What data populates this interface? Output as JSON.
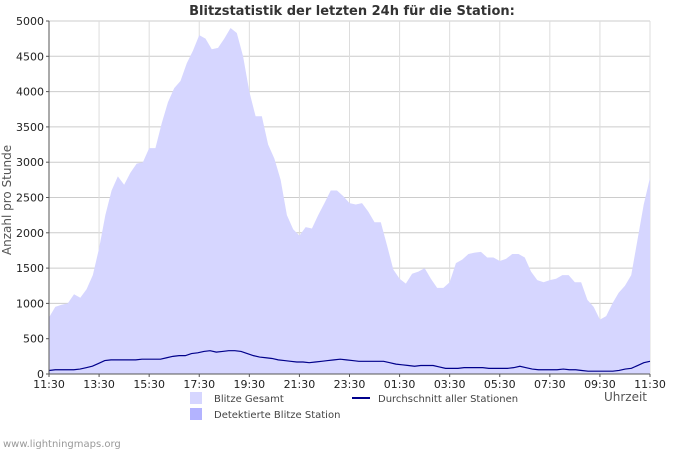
{
  "chart_data": {
    "type": "area",
    "title": "Blitzstatistik der letzten 24h für die Station:",
    "ylabel": "Anzahl pro Stunde",
    "xlabel": "Uhrzeit",
    "ylim": [
      0,
      5000
    ],
    "yticks": [
      0,
      500,
      1000,
      1500,
      2000,
      2500,
      3000,
      3500,
      4000,
      4500,
      5000
    ],
    "xticks": [
      "11:30",
      "13:30",
      "15:30",
      "17:30",
      "19:30",
      "21:30",
      "23:30",
      "01:30",
      "03:30",
      "05:30",
      "07:30",
      "09:30",
      "11:30"
    ],
    "grid": true,
    "legend_position": "bottom",
    "series": [
      {
        "name": "Blitze Gesamt",
        "color": "#d6d6ff",
        "style": "area",
        "values": [
          800,
          950,
          980,
          1000,
          1130,
          1080,
          1200,
          1400,
          1780,
          2250,
          2600,
          2800,
          2680,
          2850,
          2980,
          3000,
          3200,
          3200,
          3550,
          3850,
          4050,
          4150,
          4400,
          4580,
          4800,
          4750,
          4600,
          4620,
          4750,
          4900,
          4830,
          4500,
          4000,
          3650,
          3650,
          3250,
          3050,
          2750,
          2250,
          2050,
          1960,
          2080,
          2060,
          2250,
          2420,
          2600,
          2600,
          2520,
          2420,
          2400,
          2420,
          2300,
          2150,
          2150,
          1820,
          1480,
          1350,
          1280,
          1420,
          1450,
          1500,
          1350,
          1220,
          1220,
          1300,
          1570,
          1620,
          1700,
          1720,
          1730,
          1650,
          1650,
          1600,
          1630,
          1700,
          1700,
          1650,
          1450,
          1330,
          1300,
          1330,
          1350,
          1400,
          1400,
          1300,
          1300,
          1050,
          950,
          770,
          820,
          1000,
          1150,
          1250,
          1400,
          1900,
          2400,
          2780
        ]
      },
      {
        "name": "Detektierte Blitze Station",
        "color": "#b3b3ff",
        "style": "area",
        "values": []
      },
      {
        "name": "Durchschnitt aller Stationen",
        "color": "#00008b",
        "style": "line",
        "values": [
          50,
          60,
          60,
          60,
          60,
          70,
          90,
          110,
          150,
          190,
          200,
          200,
          200,
          200,
          200,
          210,
          210,
          210,
          210,
          230,
          250,
          260,
          260,
          290,
          300,
          320,
          330,
          310,
          320,
          330,
          330,
          320,
          290,
          260,
          240,
          230,
          220,
          200,
          190,
          180,
          170,
          170,
          160,
          170,
          180,
          190,
          200,
          210,
          200,
          190,
          180,
          180,
          180,
          180,
          180,
          160,
          140,
          130,
          120,
          110,
          120,
          120,
          120,
          100,
          80,
          80,
          80,
          90,
          90,
          90,
          90,
          80,
          80,
          80,
          80,
          90,
          110,
          90,
          70,
          60,
          60,
          60,
          60,
          70,
          60,
          60,
          50,
          40,
          40,
          40,
          40,
          40,
          50,
          70,
          80,
          120,
          160,
          180
        ]
      }
    ]
  },
  "footer": {
    "credit": "www.lightningmaps.org"
  }
}
